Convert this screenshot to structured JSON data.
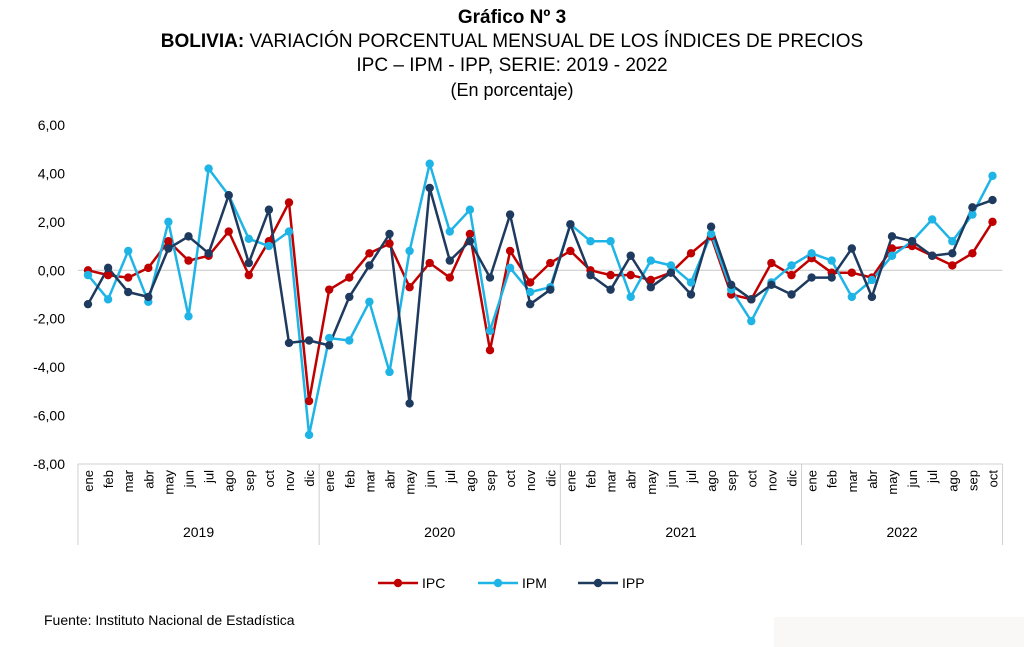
{
  "title": {
    "line1": "Gráfico Nº 3",
    "line2_bold": "BOLIVIA:",
    "line2_rest": " VARIACIÓN PORCENTUAL MENSUAL DE LOS ÍNDICES DE PRECIOS",
    "line3": "IPC – IPM - IPP, SERIE: 2019 - 2022",
    "line4": "(En porcentaje)"
  },
  "source": "Fuente: Instituto Nacional de Estadística",
  "chart_data": {
    "type": "line",
    "ylim": [
      -8,
      6
    ],
    "yticks": [
      6,
      4,
      2,
      0,
      -2,
      -4,
      -6,
      -8
    ],
    "ytick_labels": [
      "6,00",
      "4,00",
      "2,00",
      "0,00",
      "-2,00",
      "-4,00",
      "-6,00",
      "-8,00"
    ],
    "months": [
      "ene",
      "feb",
      "mar",
      "abr",
      "may",
      "jun",
      "jul",
      "ago",
      "sep",
      "oct",
      "nov",
      "dic"
    ],
    "years": [
      {
        "label": "2019",
        "months": 12
      },
      {
        "label": "2020",
        "months": 12
      },
      {
        "label": "2021",
        "months": 12
      },
      {
        "label": "2022",
        "months": 10
      }
    ],
    "legend_position": "bottom",
    "grid": false,
    "series": [
      {
        "name": "IPC",
        "color": "#c00000",
        "values": [
          0.0,
          -0.2,
          -0.3,
          0.1,
          1.2,
          0.4,
          0.6,
          1.6,
          -0.2,
          1.2,
          2.8,
          -5.4,
          -0.8,
          -0.3,
          0.7,
          1.1,
          -0.7,
          0.3,
          -0.3,
          1.5,
          -3.3,
          0.8,
          -0.5,
          0.3,
          0.8,
          0.0,
          -0.2,
          -0.2,
          -0.4,
          -0.1,
          0.7,
          1.4,
          -1.0,
          -1.2,
          0.3,
          -0.2,
          0.5,
          -0.1,
          -0.1,
          -0.3,
          0.9,
          1.0,
          0.6,
          0.2,
          0.7,
          2.0
        ]
      },
      {
        "name": "IPM",
        "color": "#1fb4e6",
        "values": [
          -0.2,
          -1.2,
          0.8,
          -1.3,
          2.0,
          -1.9,
          4.2,
          3.1,
          1.3,
          1.0,
          1.6,
          -6.8,
          -2.8,
          -2.9,
          -1.3,
          -4.2,
          0.8,
          4.4,
          1.6,
          2.5,
          -2.5,
          0.1,
          -0.9,
          -0.7,
          1.9,
          1.2,
          1.2,
          -1.1,
          0.4,
          0.2,
          -0.5,
          1.5,
          -0.8,
          -2.1,
          -0.5,
          0.2,
          0.7,
          0.4,
          -1.1,
          -0.4,
          0.6,
          1.2,
          2.1,
          1.2,
          2.3,
          3.9
        ]
      },
      {
        "name": "IPP",
        "color": "#1f3a5f",
        "values": [
          -1.4,
          0.1,
          -0.9,
          -1.1,
          0.9,
          1.4,
          0.7,
          3.1,
          0.3,
          2.5,
          -3.0,
          -2.9,
          -3.1,
          -1.1,
          0.2,
          1.5,
          -5.5,
          3.4,
          0.4,
          1.2,
          -0.3,
          2.3,
          -1.4,
          -0.8,
          1.9,
          -0.2,
          -0.8,
          0.6,
          -0.7,
          -0.1,
          -1.0,
          1.8,
          -0.6,
          -1.2,
          -0.6,
          -1.0,
          -0.3,
          -0.3,
          0.9,
          -1.1,
          1.4,
          1.2,
          0.6,
          0.7,
          2.6,
          2.9
        ]
      }
    ]
  }
}
